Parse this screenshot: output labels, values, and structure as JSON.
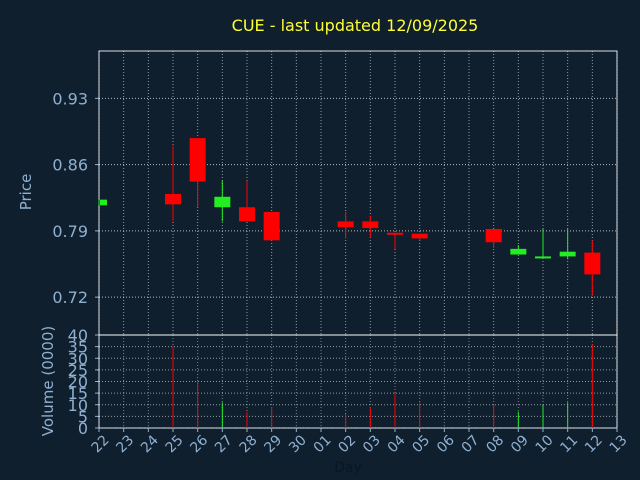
{
  "title": "CUE - last updated 12/09/2025",
  "colors": {
    "background": "#0f1f2e",
    "title": "#ffff33",
    "axis_text": "#8fb0d0",
    "grid": "#ffffff",
    "up": "#22ee22",
    "down": "#ff0000",
    "frame": "#ffffff"
  },
  "chart_data": {
    "type": "candlestick",
    "xlabel": "Day",
    "price": {
      "ylabel": "Price",
      "ylim": [
        0.68,
        0.98
      ],
      "yticks": [
        0.72,
        0.79,
        0.86,
        0.93
      ],
      "ytick_labels": [
        "0.72",
        "0.79",
        "0.86",
        "0.93"
      ],
      "grid": true
    },
    "volume": {
      "ylabel": "Volume (0000)",
      "ylim": [
        0,
        40
      ],
      "yticks": [
        0,
        5,
        10,
        15,
        20,
        25,
        30,
        35,
        40
      ],
      "ytick_labels": [
        "0",
        "5",
        "10",
        "15",
        "20",
        "25",
        "30",
        "35",
        "40"
      ],
      "grid": true
    },
    "days": [
      "22",
      "23",
      "24",
      "25",
      "26",
      "27",
      "28",
      "29",
      "30",
      "01",
      "02",
      "03",
      "04",
      "05",
      "06",
      "07",
      "08",
      "09",
      "10",
      "11",
      "12",
      "13"
    ],
    "candles": [
      {
        "day": "22",
        "open": 0.817,
        "close": 0.823,
        "high": 0.823,
        "low": 0.817,
        "volume": 0
      },
      {
        "day": "25",
        "open": 0.829,
        "close": 0.818,
        "high": 0.88,
        "low": 0.8,
        "volume": 35
      },
      {
        "day": "26",
        "open": 0.888,
        "close": 0.842,
        "high": 0.888,
        "low": 0.815,
        "volume": 20
      },
      {
        "day": "27",
        "open": 0.815,
        "close": 0.826,
        "high": 0.843,
        "low": 0.8,
        "volume": 11
      },
      {
        "day": "28",
        "open": 0.815,
        "close": 0.8,
        "high": 0.843,
        "low": 0.8,
        "volume": 7
      },
      {
        "day": "29",
        "open": 0.81,
        "close": 0.78,
        "high": 0.81,
        "low": 0.78,
        "volume": 9
      },
      {
        "day": "02",
        "open": 0.8,
        "close": 0.794,
        "high": 0.81,
        "low": 0.782,
        "volume": 6
      },
      {
        "day": "03",
        "open": 0.8,
        "close": 0.793,
        "high": 0.806,
        "low": 0.783,
        "volume": 9
      },
      {
        "day": "04",
        "open": 0.788,
        "close": 0.786,
        "high": 0.788,
        "low": 0.771,
        "volume": 15
      },
      {
        "day": "05",
        "open": 0.787,
        "close": 0.782,
        "high": 0.787,
        "low": 0.78,
        "volume": 11
      },
      {
        "day": "08",
        "open": 0.792,
        "close": 0.778,
        "high": 0.792,
        "low": 0.772,
        "volume": 10
      },
      {
        "day": "09",
        "open": 0.765,
        "close": 0.771,
        "high": 0.775,
        "low": 0.765,
        "volume": 7
      },
      {
        "day": "10",
        "open": 0.762,
        "close": 0.763,
        "high": 0.792,
        "low": 0.762,
        "volume": 10
      },
      {
        "day": "11",
        "open": 0.763,
        "close": 0.768,
        "high": 0.792,
        "low": 0.76,
        "volume": 11
      },
      {
        "day": "12",
        "open": 0.767,
        "close": 0.744,
        "high": 0.78,
        "low": 0.721,
        "volume": 36
      }
    ]
  }
}
